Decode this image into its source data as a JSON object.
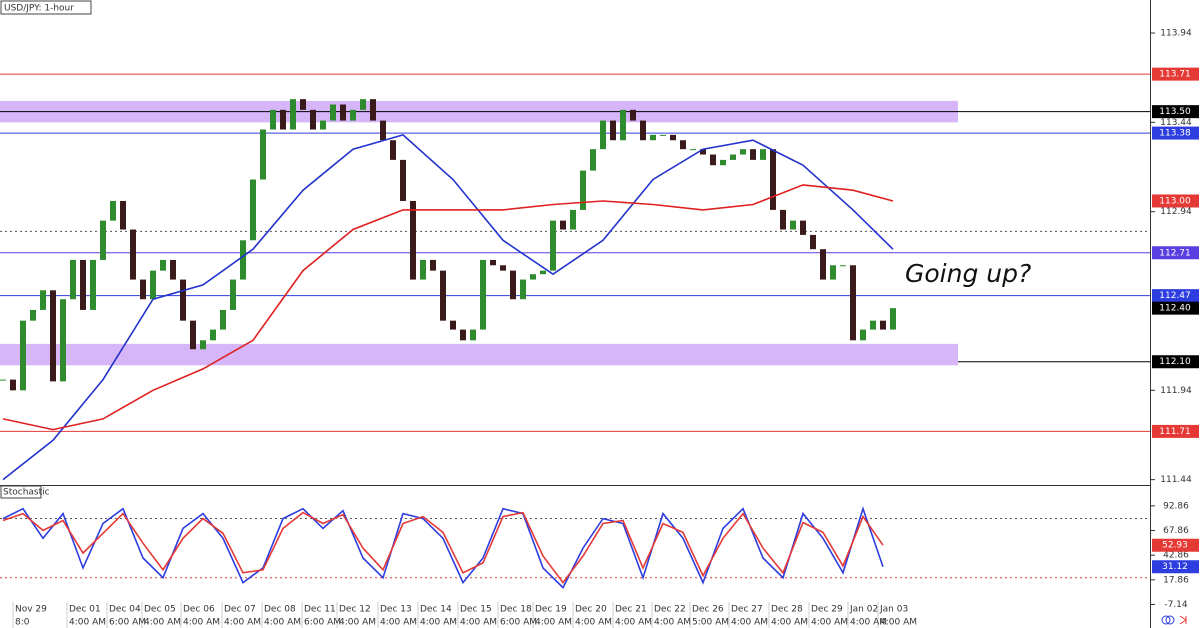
{
  "chart_data": {
    "type": "candlestick",
    "title": "USD/JPY: 1-hour",
    "annotation": "Going up?",
    "up_color": "#2e8b2e",
    "down_color": "#3a1a1a",
    "values": [
      112.0,
      111.94,
      112.33,
      112.39,
      112.5,
      111.99,
      112.45,
      112.67,
      112.39,
      112.67,
      112.89,
      113.0,
      112.84,
      112.56,
      112.45,
      112.61,
      112.67,
      112.56,
      112.33,
      112.17,
      112.22,
      112.28,
      112.39,
      112.56,
      112.78,
      113.12,
      113.4,
      113.51,
      113.4,
      113.57,
      113.51,
      113.4,
      113.45,
      113.54,
      113.45,
      113.51,
      113.57,
      113.45,
      113.34,
      113.23,
      113.0,
      112.56,
      112.67,
      112.61,
      112.33,
      112.28,
      112.22,
      112.28,
      112.67,
      112.64,
      112.61,
      112.45,
      112.56,
      112.59,
      112.61,
      112.89,
      112.84,
      112.95,
      113.17,
      113.29,
      113.45,
      113.34,
      113.51,
      113.45,
      113.34,
      113.37,
      113.37,
      113.34,
      113.29,
      113.29,
      113.26,
      113.2,
      113.23,
      113.26,
      113.29,
      113.23,
      113.29,
      112.95,
      112.84,
      112.89,
      112.81,
      112.73,
      112.56,
      112.64,
      112.64,
      112.22,
      112.28,
      112.33,
      112.28,
      112.4
    ],
    "xlim": [
      -0.3,
      114.7
    ],
    "ylim": [
      111.41,
      114.125
    ],
    "yticks": [
      113.94,
      113.44,
      112.94,
      111.94,
      111.44
    ],
    "series": [
      {
        "color": "#2233cc",
        "x": [
          0,
          5,
          10,
          15,
          20,
          25,
          30,
          35,
          40,
          45,
          50,
          55,
          60,
          65,
          70,
          75,
          80,
          85,
          89
        ],
        "values": [
          111.44,
          111.66,
          112.0,
          112.45,
          112.53,
          112.73,
          113.06,
          113.29,
          113.37,
          113.12,
          112.78,
          112.59,
          112.78,
          113.12,
          113.29,
          113.34,
          113.2,
          112.95,
          112.73
        ]
      },
      {
        "color": "#e02020",
        "x": [
          0,
          5,
          10,
          15,
          20,
          25,
          30,
          35,
          40,
          45,
          50,
          55,
          60,
          65,
          70,
          75,
          80,
          85,
          89
        ],
        "values": [
          111.78,
          111.72,
          111.78,
          111.94,
          112.06,
          112.22,
          112.61,
          112.84,
          112.95,
          112.95,
          112.95,
          112.98,
          113.0,
          112.98,
          112.95,
          112.98,
          113.09,
          113.06,
          113.0
        ]
      }
    ],
    "zones": [
      {
        "from": 113.44,
        "to": 113.56,
        "color": "#cfa8f7"
      },
      {
        "from": 112.08,
        "to": 112.2,
        "color": "#cfa8f7"
      }
    ],
    "levels": [
      {
        "value": 113.71,
        "label": "113.71",
        "color": "#e53935",
        "line": "full"
      },
      {
        "value": 113.5,
        "label": "113.50",
        "color": "#000000",
        "line": "full"
      },
      {
        "value": 113.38,
        "label": "113.38",
        "color": "#2d3de0",
        "line": "full"
      },
      {
        "value": 113.0,
        "label": "113.00",
        "color": "#e53935",
        "line": "none"
      },
      {
        "value": 112.83,
        "color": "#555555",
        "line": "dotted"
      },
      {
        "value": 112.71,
        "label": "112.71",
        "color": "#5a3fe0",
        "line": "full"
      },
      {
        "value": 112.47,
        "label": "112.47",
        "color": "#2d3de0",
        "line": "full"
      },
      {
        "value": 112.4,
        "label": "112.40",
        "color": "#000000",
        "line": "none"
      },
      {
        "value": 112.1,
        "label": "112.10",
        "color": "#000000",
        "line": "right"
      },
      {
        "value": 111.71,
        "label": "111.71",
        "color": "#e53935",
        "line": "full"
      }
    ],
    "x_labels": [
      {
        "x": 1.0,
        "date": "Nov 29",
        "time": "8:0"
      },
      {
        "x": 6.4,
        "date": "Dec 01",
        "time": "4:00 AM"
      },
      {
        "x": 10.4,
        "date": "Dec 04",
        "time": "6:00 AM"
      },
      {
        "x": 13.9,
        "date": "Dec 05",
        "time": "4:00 AM"
      },
      {
        "x": 17.8,
        "date": "Dec 06",
        "time": "4:00 AM"
      },
      {
        "x": 21.9,
        "date": "Dec 07",
        "time": "4:00 AM"
      },
      {
        "x": 25.9,
        "date": "Dec 08",
        "time": "4:00 AM"
      },
      {
        "x": 29.9,
        "date": "Dec 11",
        "time": "6:00 AM"
      },
      {
        "x": 33.4,
        "date": "Dec 12",
        "time": "4:00 AM"
      },
      {
        "x": 37.5,
        "date": "Dec 13",
        "time": "4:00 AM"
      },
      {
        "x": 41.5,
        "date": "Dec 14",
        "time": "4:00 AM"
      },
      {
        "x": 45.5,
        "date": "Dec 15",
        "time": "4:00 AM"
      },
      {
        "x": 49.5,
        "date": "Dec 18",
        "time": "6:00 AM"
      },
      {
        "x": 53.0,
        "date": "Dec 19",
        "time": "4:00 AM"
      },
      {
        "x": 57.0,
        "date": "Dec 20",
        "time": "4:00 AM"
      },
      {
        "x": 61.0,
        "date": "Dec 21",
        "time": "4:00 AM"
      },
      {
        "x": 64.9,
        "date": "Dec 22",
        "time": "4:00 AM"
      },
      {
        "x": 68.7,
        "date": "Dec 26",
        "time": "5:00 AM"
      },
      {
        "x": 72.6,
        "date": "Dec 27",
        "time": "4:00 AM"
      },
      {
        "x": 76.6,
        "date": "Dec 28",
        "time": "4:00 AM"
      },
      {
        "x": 80.6,
        "date": "Dec 29",
        "time": "4:00 AM"
      },
      {
        "x": 84.5,
        "date": "Jan 02",
        "time": "4:00 AM"
      },
      {
        "x": 87.5,
        "date": "Jan 03",
        "time": "4:00 AM"
      }
    ],
    "indicator": {
      "title": "Stochastic",
      "ylim": [
        -31,
        112
      ],
      "yticks": [
        92.86,
        67.86,
        42.86,
        17.86,
        -7.14
      ],
      "levels": [
        80,
        20
      ],
      "series": [
        {
          "color": "#2d3de0",
          "x": [
            0,
            2,
            4,
            6,
            8,
            10,
            12,
            14,
            16,
            18,
            20,
            22,
            24,
            26,
            28,
            30,
            32,
            34,
            36,
            38,
            40,
            42,
            44,
            46,
            48,
            50,
            52,
            54,
            56,
            58,
            60,
            62,
            64,
            66,
            68,
            70,
            72,
            74,
            76,
            78,
            80,
            82,
            84,
            86,
            88
          ],
          "values": [
            80,
            90,
            60,
            85,
            30,
            75,
            90,
            40,
            20,
            70,
            85,
            60,
            15,
            30,
            80,
            90,
            70,
            88,
            40,
            20,
            85,
            80,
            60,
            15,
            40,
            90,
            85,
            30,
            10,
            50,
            80,
            75,
            20,
            85,
            60,
            15,
            70,
            90,
            40,
            20,
            85,
            60,
            25,
            90,
            31.12
          ]
        },
        {
          "color": "#e53935",
          "x": [
            0,
            2,
            4,
            6,
            8,
            10,
            12,
            14,
            16,
            18,
            20,
            22,
            24,
            26,
            28,
            30,
            32,
            34,
            36,
            38,
            40,
            42,
            44,
            46,
            48,
            50,
            52,
            54,
            56,
            58,
            60,
            62,
            64,
            66,
            68,
            70,
            72,
            74,
            76,
            78,
            80,
            82,
            84,
            86,
            88
          ],
          "values": [
            78,
            85,
            68,
            78,
            45,
            65,
            85,
            55,
            28,
            60,
            80,
            65,
            25,
            28,
            70,
            86,
            75,
            84,
            50,
            28,
            75,
            82,
            66,
            25,
            35,
            82,
            86,
            42,
            15,
            42,
            75,
            78,
            30,
            75,
            66,
            22,
            60,
            85,
            50,
            25,
            76,
            66,
            32,
            82,
            52.93
          ]
        }
      ]
    }
  }
}
